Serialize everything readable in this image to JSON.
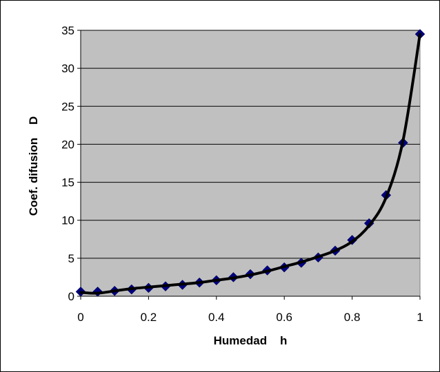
{
  "chart_data": {
    "type": "line",
    "title": "",
    "xlabel": "Humedad    h",
    "ylabel": "Coef. difusion    D",
    "xlim": [
      0,
      1
    ],
    "ylim": [
      0,
      35
    ],
    "x_ticks": [
      "0",
      "0.2",
      "0.4",
      "0.6",
      "0.8",
      "1"
    ],
    "y_ticks": [
      "0",
      "5",
      "10",
      "15",
      "20",
      "25",
      "30",
      "35"
    ],
    "grid": true,
    "legend": "none",
    "colors": {
      "plot_bg": "#c0c0c0",
      "marker": "#000080",
      "line": "#000000"
    },
    "series": [
      {
        "marker": "diamond",
        "x": [
          0,
          0.05,
          0.1,
          0.15,
          0.2,
          0.25,
          0.3,
          0.35,
          0.4,
          0.45,
          0.5,
          0.55,
          0.6,
          0.65,
          0.7,
          0.75,
          0.8,
          0.85,
          0.9,
          0.95,
          1.0
        ],
        "values": [
          0.6,
          0.6,
          0.7,
          0.9,
          1.1,
          1.3,
          1.5,
          1.8,
          2.1,
          2.5,
          2.9,
          3.4,
          3.8,
          4.4,
          5.1,
          6.0,
          7.4,
          9.6,
          13.3,
          20.2,
          34.5
        ]
      },
      {
        "marker": "none",
        "style": "smooth-fit",
        "x": [
          0,
          0.05,
          0.1,
          0.15,
          0.2,
          0.25,
          0.3,
          0.35,
          0.4,
          0.45,
          0.5,
          0.55,
          0.6,
          0.65,
          0.7,
          0.75,
          0.8,
          0.85,
          0.9,
          0.95,
          1.0
        ],
        "values": [
          0.5,
          0.4,
          0.7,
          1.0,
          1.2,
          1.4,
          1.6,
          1.8,
          2.1,
          2.4,
          2.8,
          3.3,
          3.9,
          4.5,
          5.2,
          6.0,
          7.2,
          9.3,
          13.0,
          20.5,
          34.5
        ]
      }
    ]
  }
}
